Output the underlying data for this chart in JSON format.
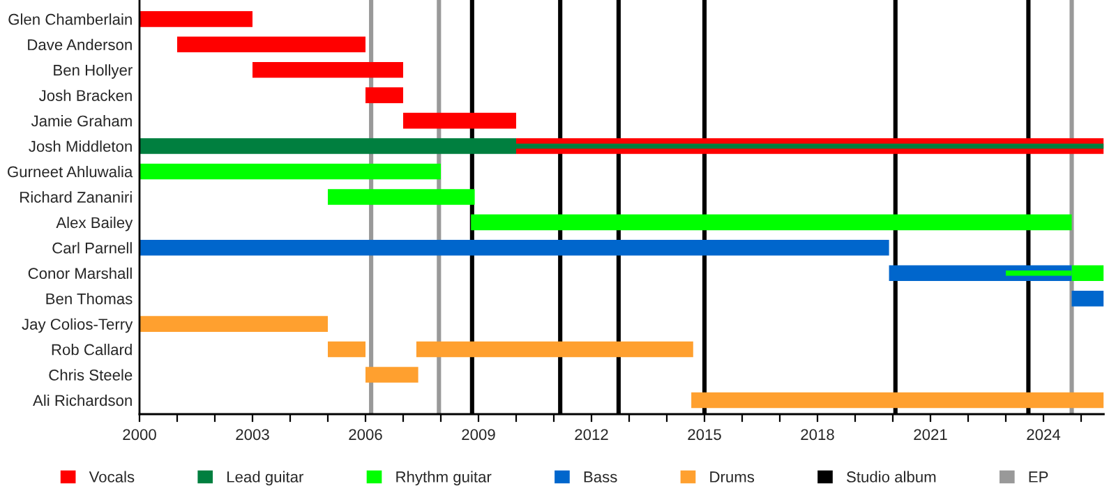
{
  "chart_data": {
    "type": "bar",
    "orientation": "horizontal",
    "categories": [
      "Glen Chamberlain",
      "Dave Anderson",
      "Ben Hollyer",
      "Josh Bracken",
      "Jamie Graham",
      "Josh Middleton",
      "Gurneet Ahluwalia",
      "Richard Zananiri",
      "Alex Bailey",
      "Carl Parnell",
      "Conor Marshall",
      "Ben Thomas",
      "Jay Colios-Terry",
      "Rob Callard",
      "Chris Steele",
      "Ali Richardson"
    ],
    "series": [
      {
        "name": "Vocals",
        "color": "#ff0000",
        "base": [
          2000,
          2001,
          2003,
          2006,
          2007,
          2010,
          null,
          null,
          null,
          null,
          null,
          null,
          null,
          null,
          null,
          null
        ],
        "values": [
          3,
          5,
          4,
          1,
          3,
          15.6,
          null,
          null,
          null,
          null,
          null,
          null,
          null,
          null,
          null,
          null
        ]
      },
      {
        "name": "Lead guitar",
        "color": "#007f3f",
        "base": [
          null,
          null,
          null,
          null,
          null,
          2000,
          null,
          null,
          null,
          null,
          null,
          null,
          null,
          null,
          null,
          null
        ],
        "values": [
          null,
          null,
          null,
          null,
          null,
          10,
          null,
          null,
          null,
          null,
          null,
          null,
          null,
          null,
          null,
          null
        ]
      },
      {
        "color": "#007f3f",
        "base": [
          null,
          null,
          null,
          null,
          null,
          2010,
          null,
          null,
          null,
          null,
          null,
          null,
          null,
          null,
          null,
          null
        ],
        "values": [
          null,
          null,
          null,
          null,
          null,
          15.6,
          null,
          null,
          null,
          null,
          null,
          null,
          null,
          null,
          null,
          null
        ]
      },
      {
        "name": "Rhythm guitar",
        "color": "#00ff00",
        "base": [
          null,
          null,
          null,
          null,
          null,
          null,
          2000,
          2005,
          2008.8,
          null,
          2024.75,
          null,
          null,
          null,
          null,
          null
        ],
        "values": [
          null,
          null,
          null,
          null,
          null,
          null,
          8,
          3.9,
          15.95,
          null,
          0.85,
          null,
          null,
          null,
          null,
          null
        ]
      },
      {
        "name": "Bass",
        "color": "#0066cc",
        "base": [
          null,
          null,
          null,
          null,
          null,
          null,
          null,
          null,
          null,
          2000,
          2019.9,
          2024.75,
          null,
          null,
          null,
          null
        ],
        "values": [
          null,
          null,
          null,
          null,
          null,
          null,
          null,
          null,
          null,
          19.9,
          4.85,
          0.85,
          null,
          null,
          null,
          null
        ]
      },
      {
        "color": "#00ff00",
        "base": [
          null,
          null,
          null,
          null,
          null,
          null,
          null,
          null,
          null,
          null,
          2023,
          null,
          null,
          null,
          null,
          null
        ],
        "values": [
          null,
          null,
          null,
          null,
          null,
          null,
          null,
          null,
          null,
          null,
          1.75,
          null,
          null,
          null,
          null,
          null
        ]
      },
      {
        "name": "Drums",
        "color": "#ffa02f",
        "base": [
          null,
          null,
          null,
          null,
          null,
          null,
          null,
          null,
          null,
          null,
          null,
          null,
          2000,
          2005,
          2006,
          2014.65
        ],
        "values": [
          null,
          null,
          null,
          null,
          null,
          null,
          null,
          null,
          null,
          null,
          null,
          null,
          5,
          1,
          1.4,
          10.95
        ]
      },
      {
        "color": "#ffa02f",
        "base": [
          null,
          null,
          null,
          null,
          null,
          null,
          null,
          null,
          null,
          null,
          null,
          null,
          null,
          2007.35,
          null,
          null
        ],
        "values": [
          null,
          null,
          null,
          null,
          null,
          null,
          null,
          null,
          null,
          null,
          null,
          null,
          null,
          7.35,
          null,
          null
        ]
      }
    ],
    "ref_lines": [
      {
        "axis": "x",
        "value": 2006.15,
        "label": "EP",
        "color": "#999999"
      },
      {
        "axis": "x",
        "value": 2007.95,
        "color": "#999999"
      },
      {
        "axis": "x",
        "value": 2024.75,
        "color": "#999999"
      },
      {
        "axis": "x",
        "value": 2008.83,
        "label": "Studio album",
        "color": "#000000"
      },
      {
        "axis": "x",
        "value": 2011.17,
        "color": "#000000"
      },
      {
        "axis": "x",
        "value": 2012.72,
        "color": "#000000"
      },
      {
        "axis": "x",
        "value": 2015.0,
        "color": "#000000"
      },
      {
        "axis": "x",
        "value": 2020.07,
        "color": "#000000"
      },
      {
        "axis": "x",
        "value": 2023.6,
        "color": "#000000"
      }
    ],
    "xlim": [
      2000,
      2025.6
    ],
    "xticks": [
      2000,
      {
        "value": 2001,
        "label": null
      },
      {
        "value": 2002,
        "label": null
      },
      2003,
      {
        "value": 2004,
        "label": null
      },
      {
        "value": 2005,
        "label": null
      },
      2006,
      {
        "value": 2007,
        "label": null
      },
      {
        "value": 2008,
        "label": null
      },
      2009,
      {
        "value": 2010,
        "label": null
      },
      {
        "value": 2011,
        "label": null
      },
      2012,
      {
        "value": 2013,
        "label": null
      },
      {
        "value": 2014,
        "label": null
      },
      2015,
      {
        "value": 2016,
        "label": null
      },
      {
        "value": 2017,
        "label": null
      },
      2018,
      {
        "value": 2019,
        "label": null
      },
      {
        "value": 2020,
        "label": null
      },
      2021,
      {
        "value": 2022,
        "label": null
      },
      {
        "value": 2023,
        "label": null
      },
      2024,
      {
        "value": 2025,
        "label": null
      }
    ],
    "grid": false,
    "legend": "bottom"
  }
}
